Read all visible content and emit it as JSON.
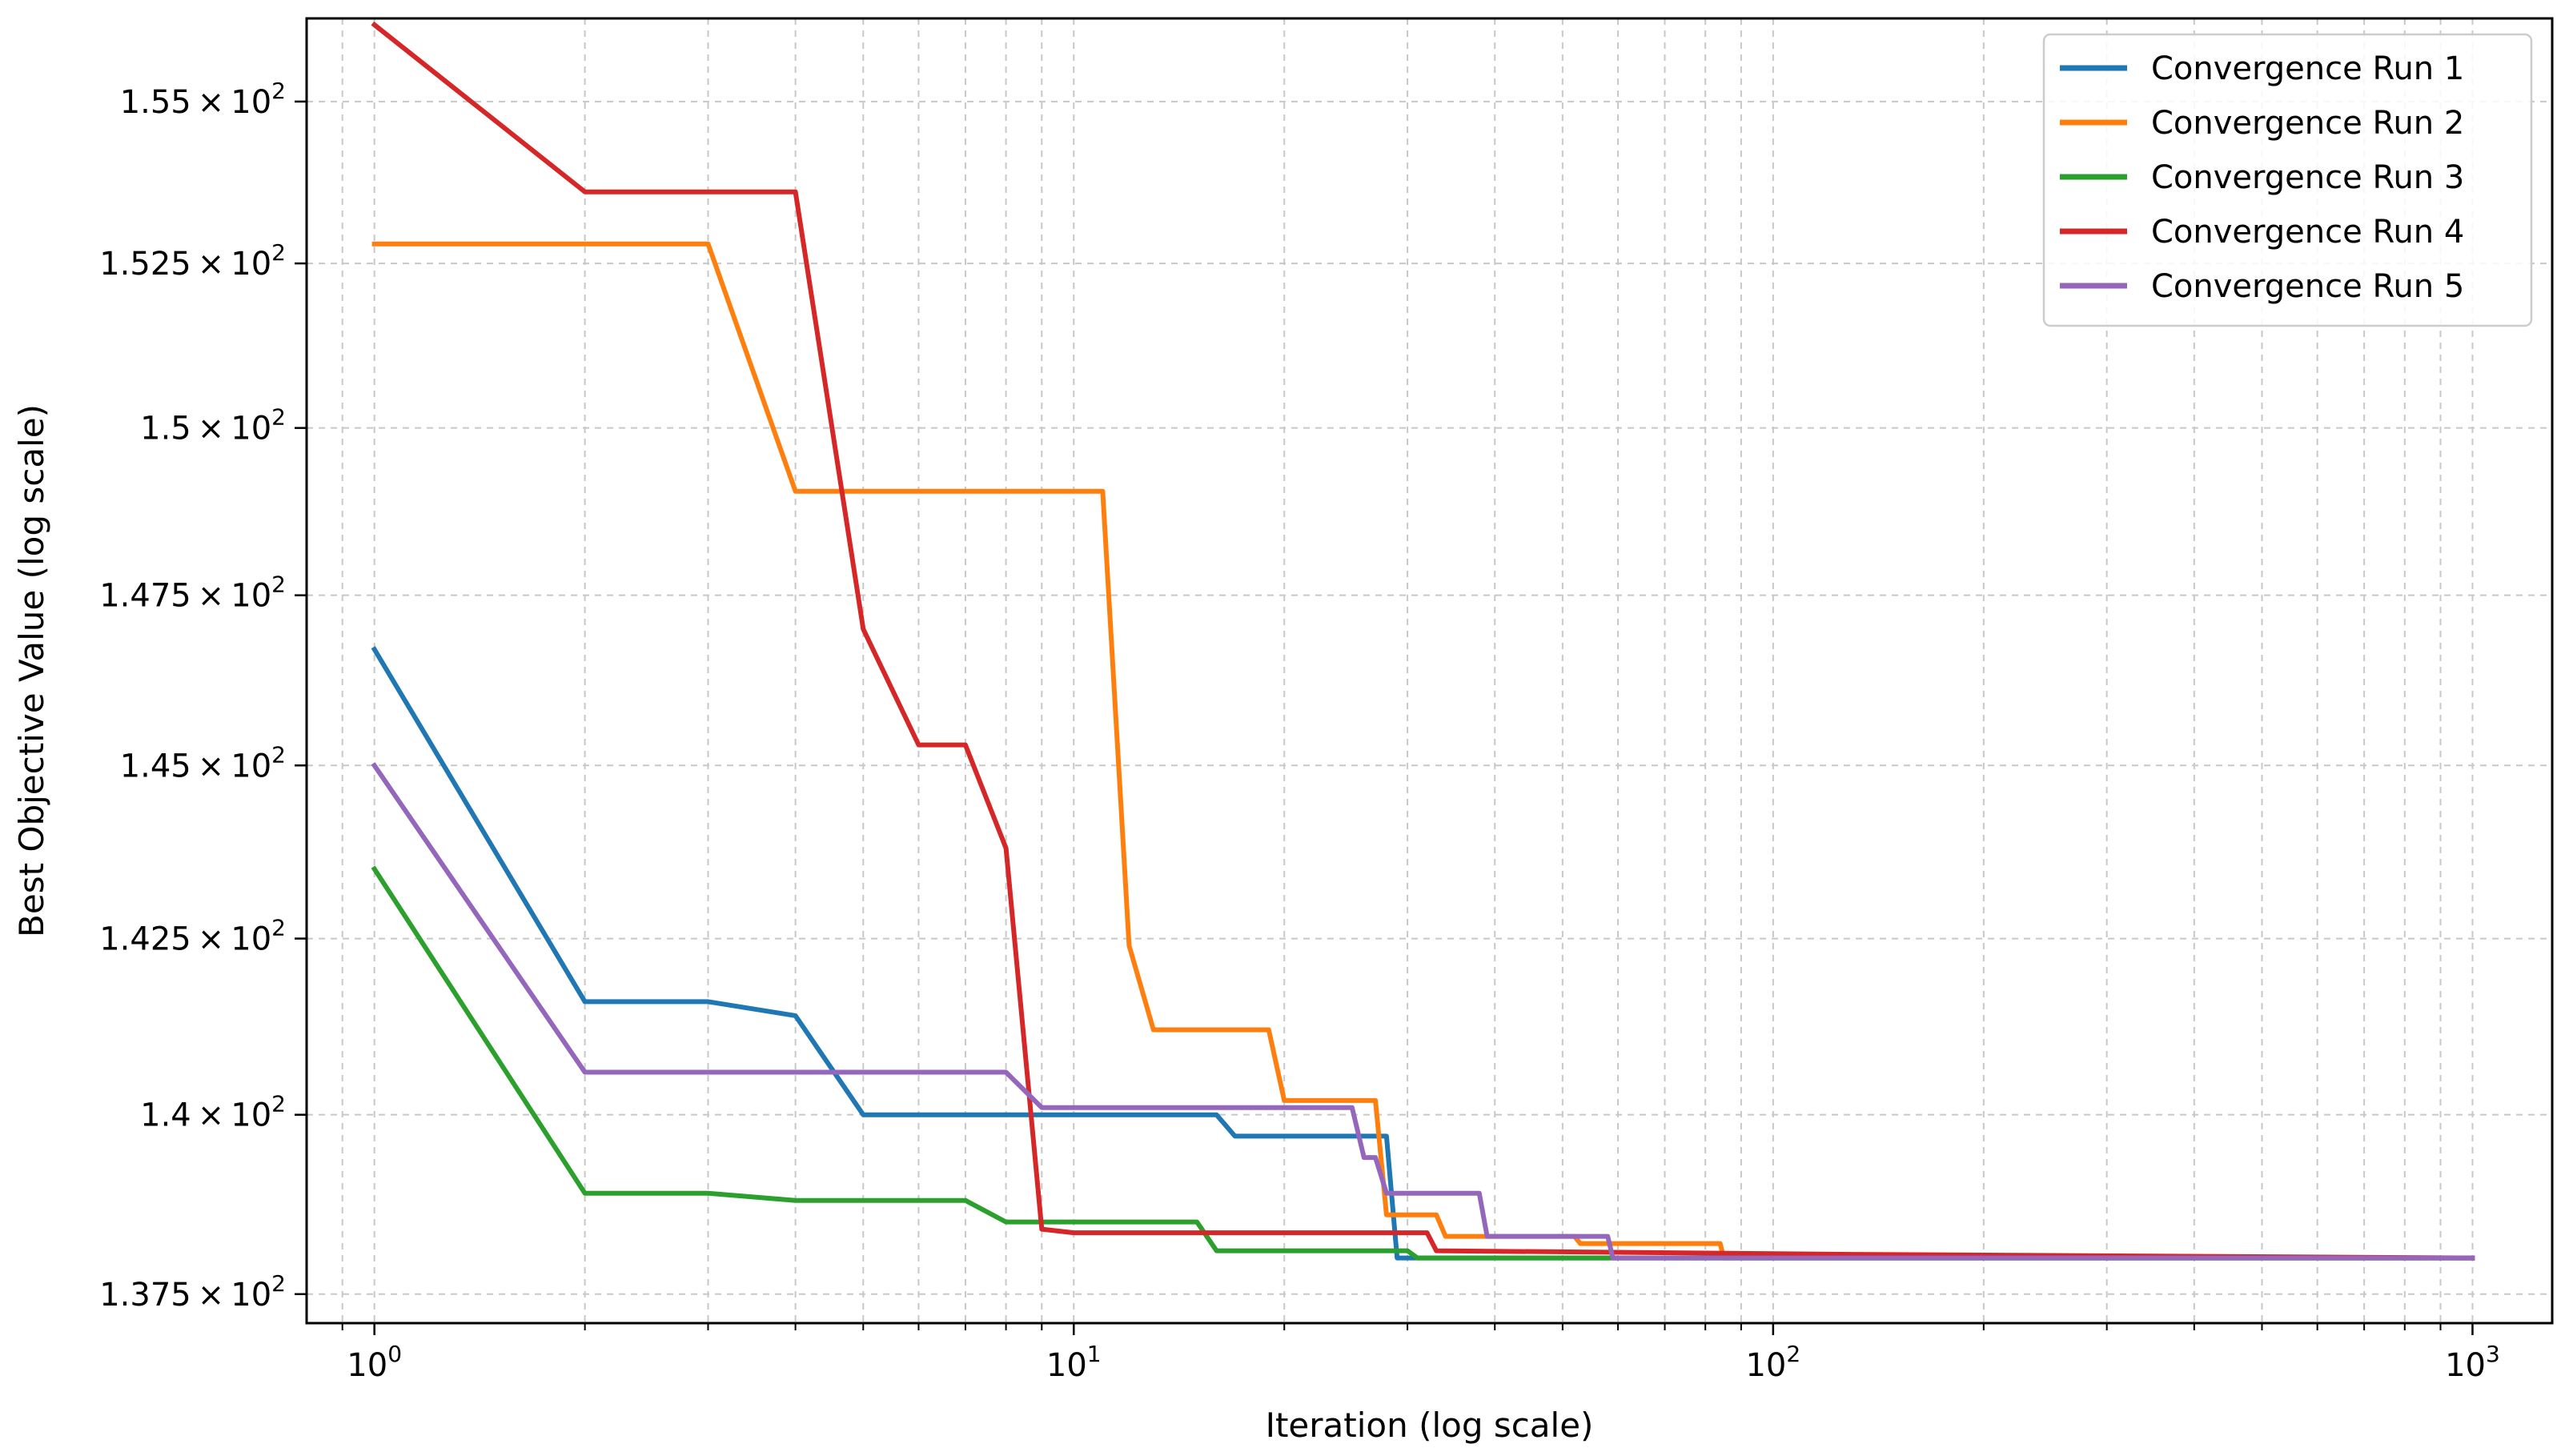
{
  "chart_data": {
    "type": "line",
    "title": "",
    "xlabel": "Iteration (log scale)",
    "ylabel": "Best Objective Value (log scale)",
    "xscale": "log",
    "yscale": "log",
    "xlim": [
      0.8,
      1300
    ],
    "ylim": [
      137.1,
      156.3
    ],
    "grid": true,
    "legend_position": "top-right",
    "x_ticks": [
      {
        "value": 1,
        "base": "10",
        "exp": "0"
      },
      {
        "value": 10,
        "base": "10",
        "exp": "1"
      },
      {
        "value": 100,
        "base": "10",
        "exp": "2"
      },
      {
        "value": 1000,
        "base": "10",
        "exp": "3"
      }
    ],
    "y_ticks": [
      {
        "value": 137.5,
        "mant": "1.375",
        "times": "×",
        "base": "10",
        "exp": "2"
      },
      {
        "value": 140,
        "mant": "1.4",
        "times": "×",
        "base": "10",
        "exp": "2"
      },
      {
        "value": 142.5,
        "mant": "1.425",
        "times": "×",
        "base": "10",
        "exp": "2"
      },
      {
        "value": 145,
        "mant": "1.45",
        "times": "×",
        "base": "10",
        "exp": "2"
      },
      {
        "value": 147.5,
        "mant": "1.475",
        "times": "×",
        "base": "10",
        "exp": "2"
      },
      {
        "value": 150,
        "mant": "1.5",
        "times": "×",
        "base": "10",
        "exp": "2"
      },
      {
        "value": 152.5,
        "mant": "1.525",
        "times": "×",
        "base": "10",
        "exp": "2"
      },
      {
        "value": 155,
        "mant": "1.55",
        "times": "×",
        "base": "10",
        "exp": "2"
      }
    ],
    "series": [
      {
        "name": "Convergence Run 1",
        "color": "#1f77b4",
        "points": [
          [
            1,
            146.7
          ],
          [
            2,
            141.6
          ],
          [
            3,
            141.6
          ],
          [
            4,
            141.4
          ],
          [
            5,
            140.0
          ],
          [
            16,
            140.0
          ],
          [
            17,
            139.7
          ],
          [
            28,
            139.7
          ],
          [
            29,
            138.0
          ],
          [
            1000,
            138.0
          ]
        ]
      },
      {
        "name": "Convergence Run 2",
        "color": "#ff7f0e",
        "points": [
          [
            1,
            152.8
          ],
          [
            3,
            152.8
          ],
          [
            4,
            149.05
          ],
          [
            11,
            149.05
          ],
          [
            12,
            142.4
          ],
          [
            13,
            141.2
          ],
          [
            19,
            141.2
          ],
          [
            20,
            140.2
          ],
          [
            27,
            140.2
          ],
          [
            28,
            138.6
          ],
          [
            33,
            138.6
          ],
          [
            34,
            138.3
          ],
          [
            52,
            138.3
          ],
          [
            53,
            138.2
          ],
          [
            84,
            138.2
          ],
          [
            85,
            138.0
          ],
          [
            1000,
            138.0
          ]
        ]
      },
      {
        "name": "Convergence Run 3",
        "color": "#2ca02c",
        "points": [
          [
            1,
            143.5
          ],
          [
            2,
            138.9
          ],
          [
            3,
            138.9
          ],
          [
            4,
            138.8
          ],
          [
            7,
            138.8
          ],
          [
            8,
            138.5
          ],
          [
            15,
            138.5
          ],
          [
            16,
            138.1
          ],
          [
            30,
            138.1
          ],
          [
            31,
            138.0
          ],
          [
            1000,
            138.0
          ]
        ]
      },
      {
        "name": "Convergence Run 4",
        "color": "#d62728",
        "points": [
          [
            1,
            156.2
          ],
          [
            2,
            153.6
          ],
          [
            4,
            153.6
          ],
          [
            5,
            147.0
          ],
          [
            6,
            145.3
          ],
          [
            7,
            145.3
          ],
          [
            8,
            143.8
          ],
          [
            9,
            138.4
          ],
          [
            10,
            138.35
          ],
          [
            20,
            138.35
          ],
          [
            32,
            138.35
          ],
          [
            33,
            138.1
          ],
          [
            130,
            138.05
          ],
          [
            1000,
            138.0
          ]
        ]
      },
      {
        "name": "Convergence Run 5",
        "color": "#9467bd",
        "points": [
          [
            1,
            145.0
          ],
          [
            2,
            140.6
          ],
          [
            8,
            140.6
          ],
          [
            9,
            140.1
          ],
          [
            25,
            140.1
          ],
          [
            26,
            139.4
          ],
          [
            27,
            139.4
          ],
          [
            28,
            138.9
          ],
          [
            38,
            138.9
          ],
          [
            39,
            138.3
          ],
          [
            58,
            138.3
          ],
          [
            59,
            138.0
          ],
          [
            1000,
            138.0
          ]
        ]
      }
    ]
  }
}
